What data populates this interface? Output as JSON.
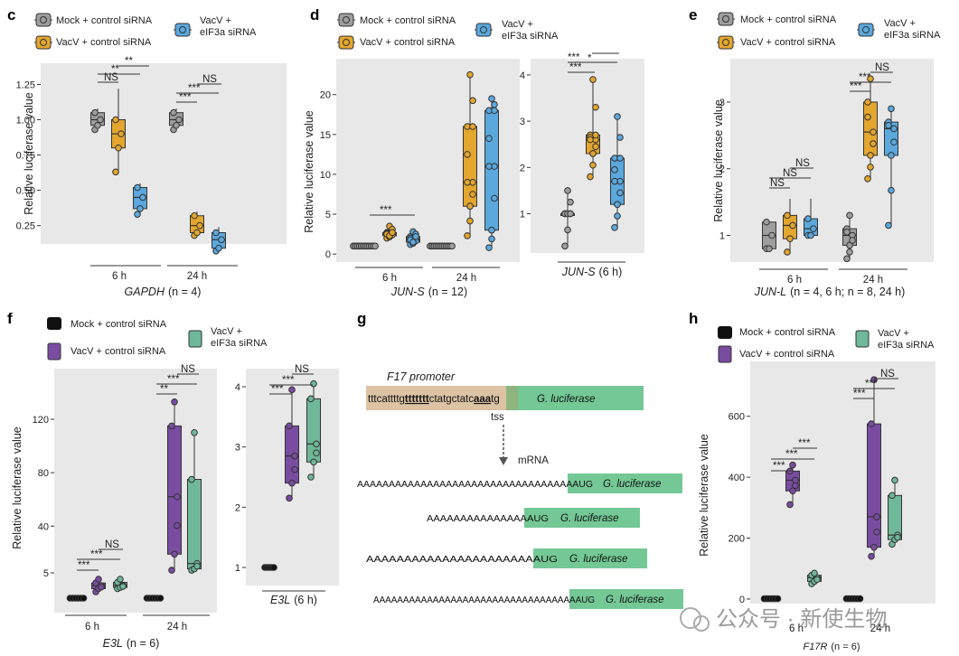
{
  "colors": {
    "mock": "#9e9e9e",
    "vacv_c": "#e3a62e",
    "vacv_e": "#5ba8dd",
    "mock_dark": "#111111",
    "vacv_c_purple": "#7a4ca1",
    "vacv_e_green": "#6fb89a",
    "panel_bg": "#e8e8e8",
    "promoter": "#dcc3a4",
    "luciferase": "#74c896"
  },
  "legend_ce": {
    "mock": "Mock + control siRNA",
    "vacv_c": "VacV + control siRNA",
    "vacv_e_1": "VacV +",
    "vacv_e_2": "eIF3a siRNA"
  },
  "legend_fh": {
    "mock": "Mock + control siRNA",
    "vacv_c": "VacV + control siRNA",
    "vacv_e_1": "VacV +",
    "vacv_e_2": "eIF3a siRNA"
  },
  "ylabel": "Relative luciferase value",
  "panels": {
    "c": {
      "letter": "c",
      "gene": "GAPDH",
      "n": "(n = 4)",
      "groups": [
        "6 h",
        "24 h"
      ],
      "yticks": [
        "0.25",
        "0.50",
        "0.75",
        "1.00",
        "1.25"
      ],
      "stars": [
        "NS",
        "**",
        "**",
        "NS",
        "***",
        "***"
      ]
    },
    "d": {
      "letter": "d",
      "gene": "JUN-S",
      "n": "(n = 12)",
      "groups": [
        "6 h",
        "24 h"
      ],
      "yticks": [
        "0",
        "5",
        "10",
        "15",
        "20"
      ],
      "stars": [
        "***"
      ],
      "inset_yticks": [
        "1",
        "2",
        "3",
        "4"
      ],
      "inset_title": "JUN-S",
      "inset_sub": "(6 h)",
      "inset_stars": [
        "***",
        "***",
        "*"
      ]
    },
    "e": {
      "letter": "e",
      "gene": "JUN-L",
      "n": "(n  = 4, 6 h; n = 8, 24 h)",
      "groups": [
        "6 h",
        "24 h"
      ],
      "yticks": [
        "1",
        "2",
        "3"
      ],
      "stars": [
        "NS",
        "NS",
        "NS",
        "***",
        "***",
        "NS"
      ]
    },
    "f": {
      "letter": "f",
      "gene": "E3L",
      "n": "(n = 6)",
      "groups": [
        "6 h",
        "24 h"
      ],
      "yticks": [
        "5",
        "40",
        "80",
        "120"
      ],
      "stars": [
        "***",
        "***",
        "NS",
        "**",
        "***",
        "NS"
      ],
      "inset_yticks": [
        "1",
        "2",
        "3",
        "4"
      ],
      "inset_title": "E3L",
      "inset_sub": "(6 h)",
      "inset_stars": [
        "***",
        "***",
        "NS"
      ]
    },
    "h": {
      "letter": "h",
      "gene": "F17R",
      "n": "(n = 6)",
      "groups": [
        "6 h",
        "24 h"
      ],
      "yticks": [
        "0",
        "200",
        "400",
        "600"
      ],
      "stars": [
        "***",
        "***",
        "***",
        "***",
        "***",
        "NS"
      ]
    }
  },
  "g": {
    "letter": "g",
    "promoter_label": "F17 promoter",
    "seq_a": "tttcattttg",
    "seq_b": "ttttttt",
    "seq_c": "ctatgctatc",
    "seq_d": "aaa",
    "seq_e": "tg",
    "luc": "G. luciferase",
    "tss": "tss",
    "mrna": "mRNA",
    "polyA1": "AAAAAAAAAAAAAAAAAAAAAAAAAAAAAAAAAAAUG",
    "polyA2": "AAAAAAAAAAAAAAAAUG",
    "polyA3": "AAAAAAAAAAAAAAAAAAAAAAAUG",
    "polyA4": "AAAAAAAAAAAAAAAAAAAAAAAAAAAAAAAAAAAUG"
  },
  "watermark": "公众号 · 新使生物",
  "chart_data": [
    {
      "type": "box",
      "panel": "c",
      "title": "GAPDH (n = 4)",
      "xlabel": "",
      "ylabel": "Relative luciferase value",
      "ylim": [
        0.12,
        1.4
      ],
      "categories": [
        "6 h",
        "24 h"
      ],
      "series": [
        {
          "name": "Mock + control siRNA",
          "values": [
            [
              0.93,
              0.96,
              1.0,
              1.05,
              1.08
            ],
            [
              0.93,
              0.96,
              1.0,
              1.05,
              1.08
            ]
          ]
        },
        {
          "name": "VacV + control siRNA",
          "values": [
            [
              0.63,
              0.8,
              0.9,
              1.0,
              1.22
            ],
            [
              0.18,
              0.2,
              0.25,
              0.32,
              0.35
            ]
          ]
        },
        {
          "name": "VacV + eIF3a siRNA",
          "values": [
            [
              0.33,
              0.37,
              0.45,
              0.52,
              0.55
            ],
            [
              0.07,
              0.09,
              0.15,
              0.2,
              0.24
            ]
          ]
        }
      ]
    },
    {
      "type": "box",
      "panel": "d",
      "title": "JUN-S (n = 12)",
      "xlabel": "",
      "ylabel": "Relative luciferase value",
      "ylim": [
        -1,
        24.5
      ],
      "categories": [
        "6 h",
        "24 h"
      ],
      "series": [
        {
          "name": "Mock + control siRNA",
          "values": [
            [
              1,
              1,
              1,
              1,
              1
            ],
            [
              1,
              1,
              1,
              1,
              1
            ]
          ]
        },
        {
          "name": "VacV + control siRNA",
          "values": [
            [
              2.0,
              2.3,
              2.5,
              2.7,
              3.5
            ],
            [
              2.3,
              6,
              9,
              16,
              22.5
            ]
          ]
        },
        {
          "name": "VacV + eIF3a siRNA",
          "values": [
            [
              1.2,
              1.5,
              1.8,
              2.2,
              2.8
            ],
            [
              0.8,
              3,
              11,
              18,
              19.5
            ]
          ]
        }
      ]
    },
    {
      "type": "box",
      "panel": "d-inset",
      "title": "JUN-S (6 h)",
      "xlabel": "",
      "ylabel": "",
      "ylim": [
        0.15,
        4.35
      ],
      "categories": [
        "Mock",
        "VacV + control",
        "VacV + eIF3a"
      ],
      "series": [
        {
          "name": "boxes",
          "values": [
            [
              0.3,
              1,
              1,
              1,
              1.5
            ],
            [
              1.8,
              2.3,
              2.6,
              2.7,
              3.9
            ],
            [
              0.7,
              1.2,
              1.7,
              2.2,
              3.1
            ]
          ]
        }
      ]
    },
    {
      "type": "box",
      "panel": "e",
      "title": "JUN-L (n  = 4, 6 h; n = 8, 24 h)",
      "xlabel": "",
      "ylabel": "Relative luciferase value",
      "ylim": [
        0.6,
        3.65
      ],
      "categories": [
        "6 h",
        "24 h"
      ],
      "series": [
        {
          "name": "Mock + control siRNA",
          "values": [
            [
              0.8,
              0.8,
              1.0,
              1.2,
              1.2
            ],
            [
              0.65,
              0.85,
              1.0,
              1.1,
              1.3
            ]
          ]
        },
        {
          "name": "VacV + control siRNA",
          "values": [
            [
              0.75,
              0.95,
              1.15,
              1.3,
              1.55
            ],
            [
              1.85,
              2.2,
              2.55,
              3.0,
              3.35
            ]
          ]
        },
        {
          "name": "VacV + eIF3a siRNA",
          "values": [
            [
              1.0,
              1.0,
              1.1,
              1.25,
              1.55
            ],
            [
              1.15,
              2.2,
              2.6,
              2.7,
              2.9
            ]
          ]
        }
      ]
    },
    {
      "type": "box",
      "panel": "f",
      "title": "E3L (n = 6)",
      "xlabel": "",
      "ylabel": "Relative luciferase value",
      "ylim": [
        -10,
        150
      ],
      "categories": [
        "6 h",
        "24 h"
      ],
      "series": [
        {
          "name": "Mock + control siRNA",
          "values": [
            [
              1,
              1,
              1,
              1,
              1
            ],
            [
              1,
              1,
              1,
              1,
              1
            ]
          ]
        },
        {
          "name": "VacV + control siRNA",
          "values": [
            [
              2,
              2.5,
              3,
              3.4,
              4
            ],
            [
              7,
              19,
              62,
              115,
              133
            ]
          ]
        },
        {
          "name": "VacV + eIF3a siRNA",
          "values": [
            [
              2.5,
              2.7,
              3,
              3.5,
              4
            ],
            [
              7,
              8,
              12,
              75,
              110
            ]
          ]
        }
      ]
    },
    {
      "type": "box",
      "panel": "f-inset",
      "title": "E3L (6 h)",
      "xlabel": "",
      "ylabel": "",
      "ylim": [
        0.7,
        4.3
      ],
      "categories": [
        "Mock",
        "VacV + control",
        "VacV + eIF3a"
      ],
      "series": [
        {
          "name": "boxes",
          "values": [
            [
              0.95,
              0.97,
              1.0,
              1.03,
              1.05
            ],
            [
              2.15,
              2.4,
              2.85,
              3.35,
              3.95
            ],
            [
              2.5,
              2.75,
              3.05,
              3.8,
              4.05
            ]
          ]
        }
      ]
    },
    {
      "type": "box",
      "panel": "h",
      "title": "F17R (n = 6)",
      "xlabel": "",
      "ylabel": "Relative luciferase value",
      "ylim": [
        -15,
        780
      ],
      "categories": [
        "6 h",
        "24 h"
      ],
      "series": [
        {
          "name": "Mock + control siRNA",
          "values": [
            [
              1,
              1,
              1,
              1,
              1
            ],
            [
              1,
              1,
              1,
              1,
              1
            ]
          ]
        },
        {
          "name": "VacV + control siRNA",
          "values": [
            [
              310,
              355,
              390,
              420,
              440
            ],
            [
              140,
              170,
              270,
              575,
              720
            ]
          ]
        },
        {
          "name": "VacV + eIF3a siRNA",
          "values": [
            [
              50,
              58,
              70,
              78,
              85
            ],
            [
              180,
              195,
              210,
              340,
              390
            ]
          ]
        }
      ]
    }
  ]
}
